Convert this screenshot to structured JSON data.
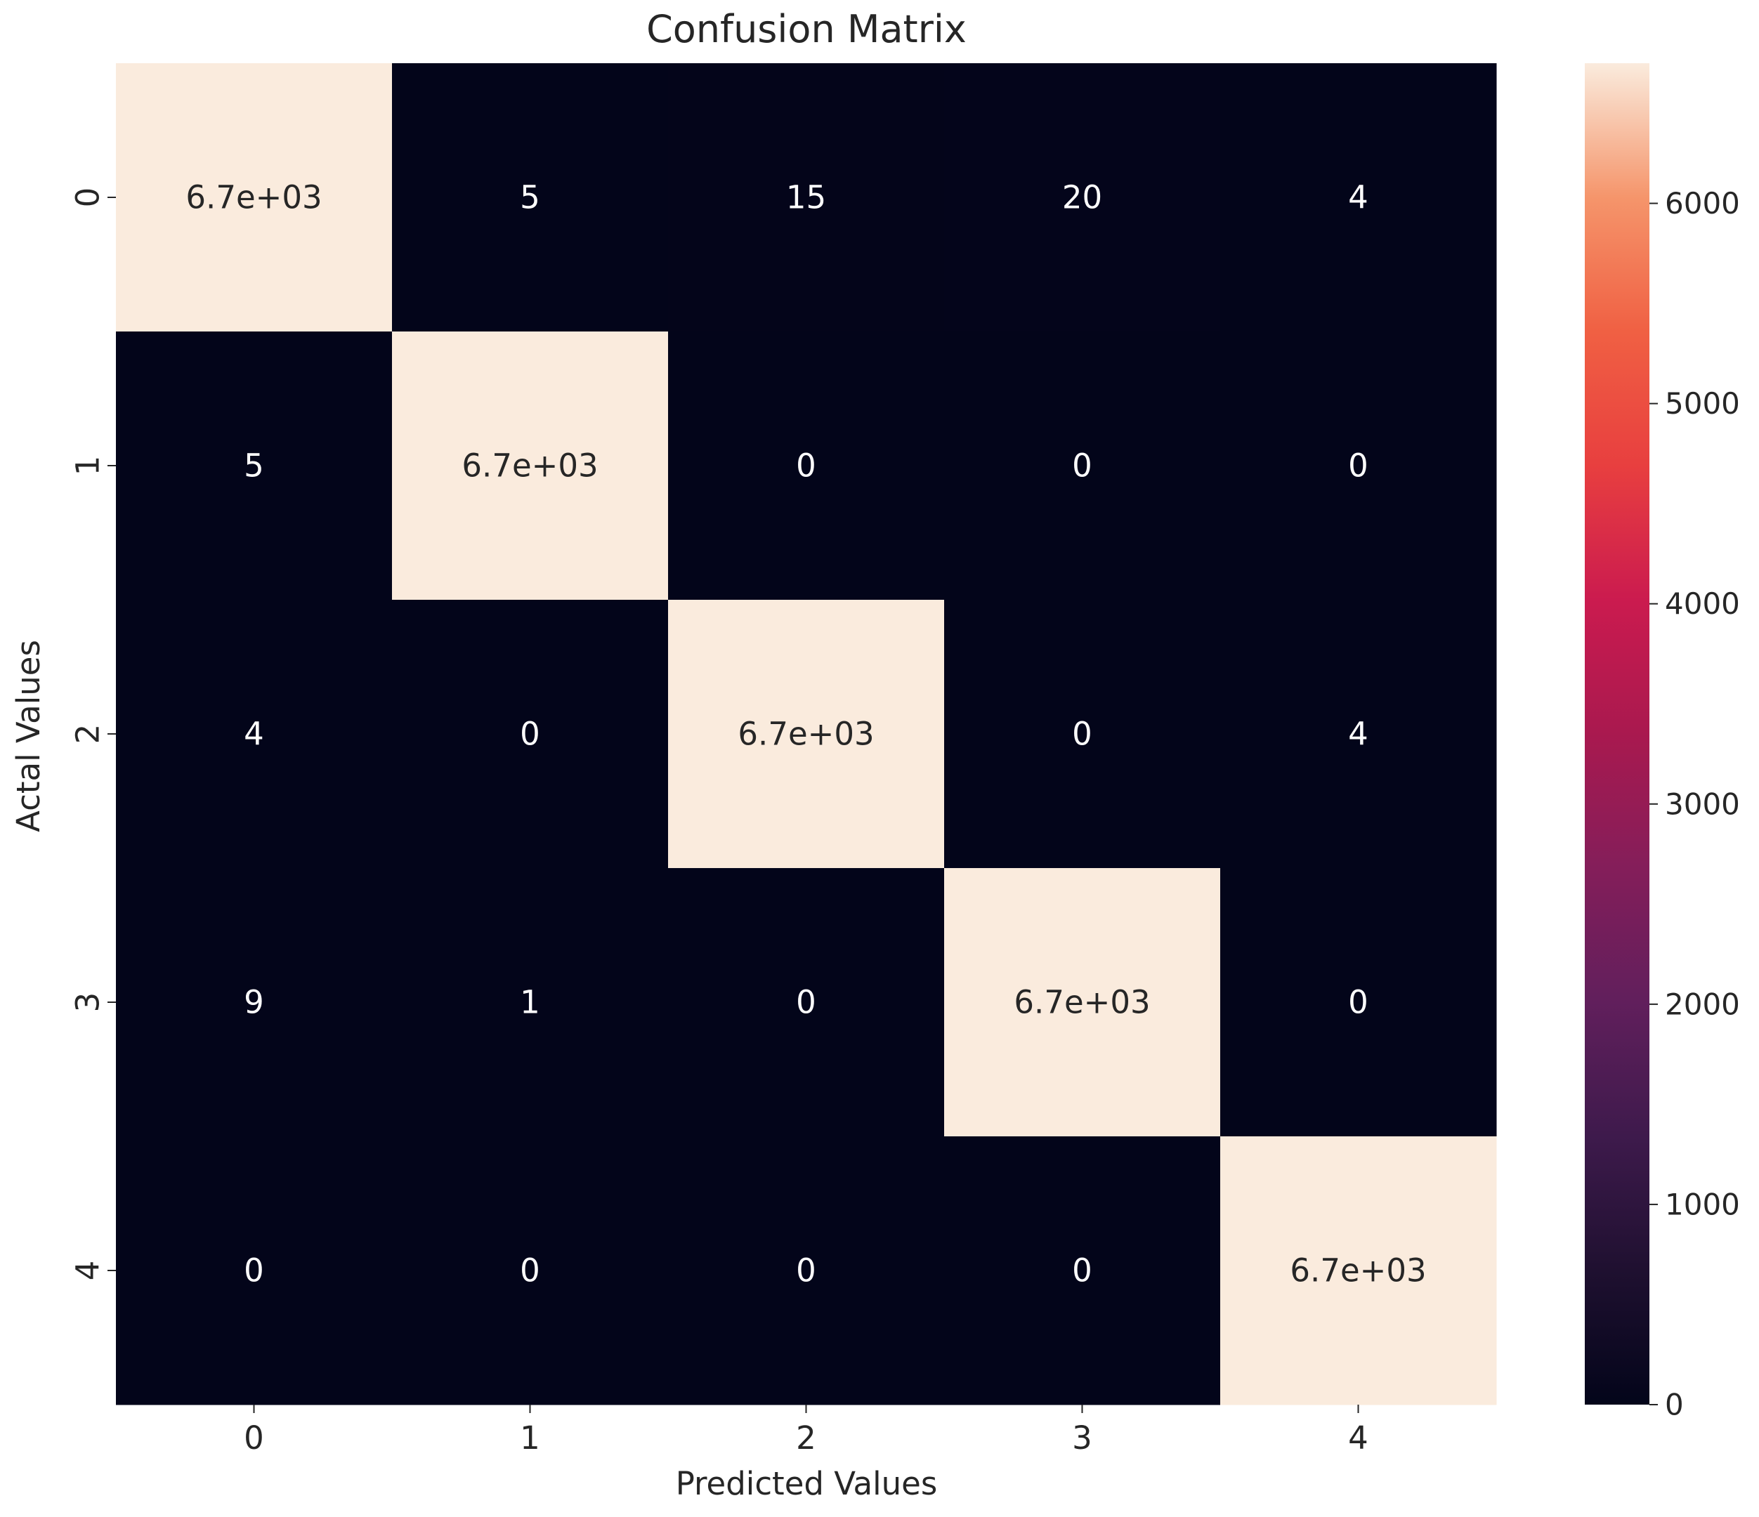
{
  "chart_data": {
    "type": "heatmap",
    "title": "Confusion Matrix",
    "xlabel": "Predicted Values",
    "ylabel": "Actal Values",
    "x_categories": [
      "0",
      "1",
      "2",
      "3",
      "4"
    ],
    "y_categories": [
      "0",
      "1",
      "2",
      "3",
      "4"
    ],
    "values": [
      [
        6700,
        5,
        15,
        20,
        4
      ],
      [
        5,
        6700,
        0,
        0,
        0
      ],
      [
        4,
        0,
        6700,
        0,
        4
      ],
      [
        9,
        1,
        0,
        6700,
        0
      ],
      [
        0,
        0,
        0,
        0,
        6700
      ]
    ],
    "annotations": [
      [
        "6.7e+03",
        "5",
        "15",
        "20",
        "4"
      ],
      [
        "5",
        "6.7e+03",
        "0",
        "0",
        "0"
      ],
      [
        "4",
        "0",
        "6.7e+03",
        "0",
        "4"
      ],
      [
        "9",
        "1",
        "0",
        "6.7e+03",
        "0"
      ],
      [
        "0",
        "0",
        "0",
        "0",
        "6.7e+03"
      ]
    ],
    "colorbar": {
      "colormap": "rocket",
      "range": [
        0,
        6700
      ],
      "ticks": [
        0,
        1000,
        2000,
        3000,
        4000,
        5000,
        6000
      ],
      "tick_labels": [
        "0",
        "1000",
        "2000",
        "3000",
        "4000",
        "5000",
        "6000"
      ]
    },
    "grid": false
  }
}
